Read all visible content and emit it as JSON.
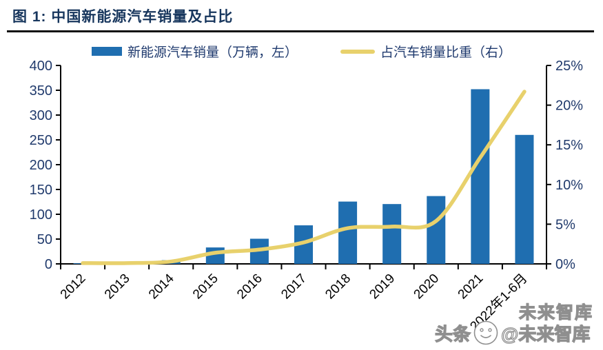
{
  "figure": {
    "title": "图 1: 中国新能源汽车销量及占比"
  },
  "legend": [
    {
      "label": "新能源汽车销量（万辆，左）",
      "swatch": "bar-swatch",
      "color": "#1f6eb0"
    },
    {
      "label": "占汽车销量比重（右）",
      "swatch": "line-swatch",
      "color": "#e8d16c"
    }
  ],
  "chart_data": {
    "type": "bar",
    "subtype": "bar+line-dual-axis",
    "title": "中国新能源汽车销量及占比",
    "categories": [
      "2012",
      "2013",
      "2014",
      "2015",
      "2016",
      "2017",
      "2018",
      "2019",
      "2020",
      "2021",
      "2022年1-6月"
    ],
    "series": [
      {
        "name": "新能源汽车销量（万辆，左）",
        "type": "bar",
        "axis": "left",
        "color": "#1f6eb0",
        "values": [
          1.3,
          1.8,
          7.5,
          33.1,
          50.7,
          77.7,
          125.6,
          120.6,
          136.7,
          352.1,
          260
        ]
      },
      {
        "name": "占汽车销量比重（右）",
        "type": "line",
        "axis": "right",
        "color": "#e8d16c",
        "values": [
          0.1,
          0.1,
          0.3,
          1.4,
          1.8,
          2.7,
          4.5,
          4.7,
          5.4,
          13.4,
          21.7
        ]
      }
    ],
    "left_axis": {
      "min": 0,
      "max": 400,
      "step": 50,
      "tick_labels": [
        "0",
        "50",
        "100",
        "150",
        "200",
        "250",
        "300",
        "350",
        "400"
      ]
    },
    "right_axis": {
      "min": 0,
      "max": 25,
      "step": 5,
      "tick_labels": [
        "0%",
        "5%",
        "10%",
        "15%",
        "20%",
        "25%"
      ]
    },
    "grid": false,
    "legend_position": "top",
    "colors": {
      "axis_line": "#000000",
      "axis_tick_labels": "#203a6c",
      "x_tick_labels": "#000000",
      "title": "#17365d"
    }
  },
  "watermark": {
    "text_prefix": "头条",
    "text_suffix": "@未来智库",
    "echo": "未来智库",
    "logo": "smiley-face-logo"
  }
}
